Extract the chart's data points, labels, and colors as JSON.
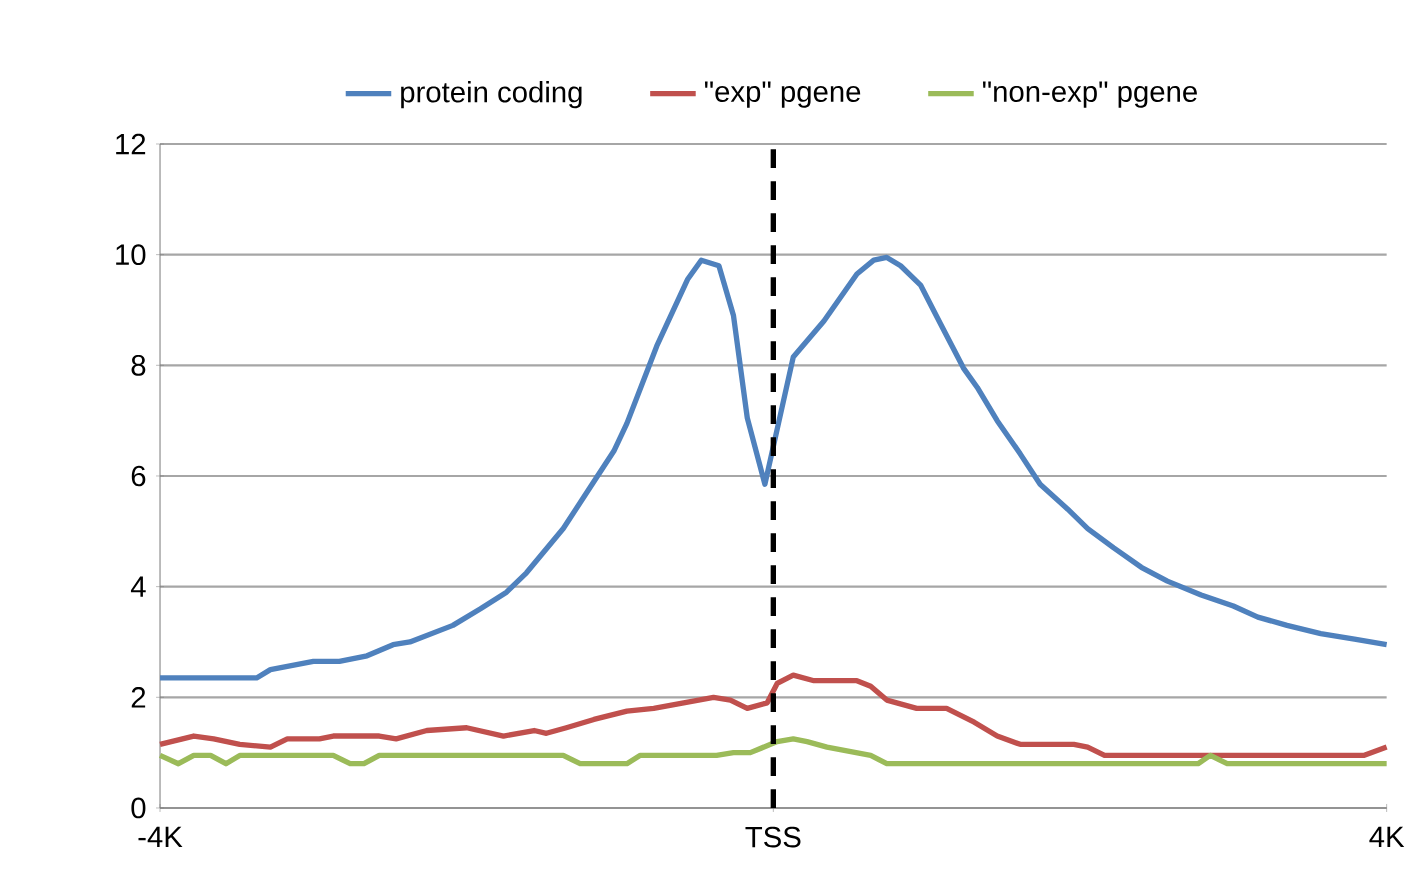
{
  "chart_data": {
    "type": "line",
    "xlim": [
      -4000,
      4000
    ],
    "xticks": [
      {
        "value": -4000,
        "label": "-4K"
      },
      {
        "value": 0,
        "label": "TSS"
      },
      {
        "value": 4000,
        "label": "4K"
      }
    ],
    "ylim": [
      0,
      12
    ],
    "yticks": [
      0,
      2,
      4,
      6,
      8,
      10,
      12
    ],
    "grid": "y",
    "legend": "top",
    "marker": "none",
    "ref_lines": [
      {
        "axis": "x",
        "value": 0,
        "color": "#000000",
        "line_style": "dashed"
      }
    ],
    "series": [
      {
        "name": "protein coding",
        "color": "#4f81bd",
        "x": [
          -4000,
          -3370,
          -3280,
          -3000,
          -2830,
          -2650,
          -2480,
          -2370,
          -2090,
          -1910,
          -1740,
          -1610,
          -1370,
          -1170,
          -1040,
          -955,
          -760,
          -560,
          -470,
          -355,
          -260,
          -170,
          -55,
          130,
          330,
          545,
          655,
          740,
          830,
          960,
          1090,
          1240,
          1330,
          1460,
          1610,
          1740,
          1920,
          2050,
          2220,
          2400,
          2570,
          2790,
          3000,
          3160,
          3350,
          3570,
          3790,
          4000
        ],
        "values": [
          2.35,
          2.35,
          2.5,
          2.65,
          2.65,
          2.75,
          2.95,
          3.0,
          3.3,
          3.6,
          3.9,
          4.25,
          5.05,
          5.9,
          6.45,
          6.95,
          8.35,
          9.55,
          9.9,
          9.8,
          8.9,
          7.05,
          5.85,
          8.15,
          8.8,
          9.65,
          9.9,
          9.95,
          9.8,
          9.45,
          8.75,
          7.95,
          7.6,
          7.0,
          6.4,
          5.85,
          5.4,
          5.05,
          4.7,
          4.35,
          4.1,
          3.85,
          3.65,
          3.45,
          3.3,
          3.15,
          3.05,
          2.95
        ]
      },
      {
        "name": "\"exp\" pgene",
        "color": "#c0504d",
        "x": [
          -4000,
          -3780,
          -3650,
          -3480,
          -3280,
          -3170,
          -2960,
          -2870,
          -2570,
          -2460,
          -2260,
          -2000,
          -1760,
          -1560,
          -1480,
          -1350,
          -1170,
          -955,
          -780,
          -390,
          -280,
          -170,
          -40,
          25,
          130,
          265,
          545,
          635,
          740,
          935,
          1130,
          1310,
          1460,
          1610,
          1960,
          2050,
          2160,
          3850,
          4000
        ],
        "values": [
          1.15,
          1.3,
          1.25,
          1.15,
          1.1,
          1.25,
          1.25,
          1.3,
          1.3,
          1.25,
          1.4,
          1.45,
          1.3,
          1.4,
          1.35,
          1.45,
          1.6,
          1.75,
          1.8,
          2.0,
          1.95,
          1.8,
          1.9,
          2.25,
          2.4,
          2.3,
          2.3,
          2.2,
          1.95,
          1.8,
          1.8,
          1.55,
          1.3,
          1.15,
          1.15,
          1.1,
          0.95,
          0.95,
          1.1
        ]
      },
      {
        "name": "\"non-exp\" pgene",
        "color": "#9bbb59",
        "x": [
          -4000,
          -3880,
          -3780,
          -3670,
          -3570,
          -3480,
          -2870,
          -2760,
          -2670,
          -2570,
          -1370,
          -1260,
          -955,
          -870,
          -370,
          -260,
          -150,
          25,
          130,
          220,
          350,
          635,
          740,
          2770,
          2850,
          2960,
          4000
        ],
        "values": [
          0.95,
          0.8,
          0.95,
          0.95,
          0.8,
          0.95,
          0.95,
          0.8,
          0.8,
          0.95,
          0.95,
          0.8,
          0.8,
          0.95,
          0.95,
          1.0,
          1.0,
          1.2,
          1.25,
          1.2,
          1.1,
          0.95,
          0.8,
          0.8,
          0.95,
          0.8,
          0.8
        ]
      }
    ]
  }
}
